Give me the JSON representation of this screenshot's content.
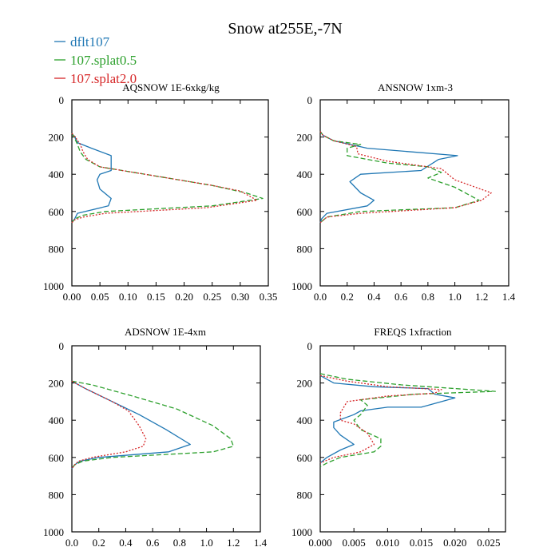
{
  "figure_title": "Snow at255E,-7N",
  "legend": [
    {
      "label": "dflt107",
      "color": "#1f77b4",
      "dash": "solid"
    },
    {
      "label": "107.splat0.5",
      "color": "#2ca02c",
      "dash": "dash"
    },
    {
      "label": "107.splat2.0",
      "color": "#d62728",
      "dash": "dot"
    }
  ],
  "chart_data": [
    {
      "type": "line",
      "title": "AQSNOW  1E-6xkg/kg",
      "xlim": [
        0,
        0.35
      ],
      "xticks": [
        0,
        0.05,
        0.1,
        0.15,
        0.2,
        0.25,
        0.3,
        0.35
      ],
      "xticklabels": [
        "0.00",
        "0.05",
        "0.10",
        "0.15",
        "0.20",
        "0.25",
        "0.30",
        "0.35"
      ],
      "ylim": [
        1000,
        0
      ],
      "yticks": [
        0,
        200,
        400,
        600,
        800,
        1000
      ],
      "yticklabels": [
        "0",
        "200",
        "400",
        "600",
        "800",
        "1000"
      ],
      "series": [
        {
          "name": "dflt107",
          "points": [
            [
              0,
              180
            ],
            [
              0.005,
              200
            ],
            [
              0.01,
              230
            ],
            [
              0.035,
              260
            ],
            [
              0.07,
              300
            ],
            [
              0.07,
              380
            ],
            [
              0.05,
              400
            ],
            [
              0.045,
              430
            ],
            [
              0.05,
              480
            ],
            [
              0.07,
              530
            ],
            [
              0.065,
              570
            ],
            [
              0.01,
              610
            ],
            [
              0.005,
              640
            ],
            [
              0,
              660
            ]
          ]
        },
        {
          "name": "107.splat0.5",
          "points": [
            [
              0,
              180
            ],
            [
              0.004,
              200
            ],
            [
              0.01,
              240
            ],
            [
              0.015,
              280
            ],
            [
              0.025,
              320
            ],
            [
              0.05,
              360
            ],
            [
              0.15,
              410
            ],
            [
              0.25,
              460
            ],
            [
              0.31,
              500
            ],
            [
              0.34,
              530
            ],
            [
              0.25,
              570
            ],
            [
              0.06,
              600
            ],
            [
              0.02,
              620
            ],
            [
              0.005,
              640
            ],
            [
              0,
              660
            ]
          ]
        },
        {
          "name": "107.splat2.0",
          "points": [
            [
              0,
              180
            ],
            [
              0.006,
              200
            ],
            [
              0.015,
              240
            ],
            [
              0.02,
              280
            ],
            [
              0.028,
              320
            ],
            [
              0.05,
              360
            ],
            [
              0.15,
              410
            ],
            [
              0.25,
              460
            ],
            [
              0.3,
              490
            ],
            [
              0.33,
              540
            ],
            [
              0.24,
              580
            ],
            [
              0.06,
              610
            ],
            [
              0.02,
              630
            ],
            [
              0.005,
              645
            ],
            [
              0,
              660
            ]
          ]
        }
      ]
    },
    {
      "type": "line",
      "title": "ANSNOW  1xm-3",
      "xlim": [
        0,
        1.4
      ],
      "xticks": [
        0,
        0.2,
        0.4,
        0.6,
        0.8,
        1.0,
        1.2,
        1.4
      ],
      "xticklabels": [
        "0.0",
        "0.2",
        "0.4",
        "0.6",
        "0.8",
        "1.0",
        "1.2",
        "1.4"
      ],
      "ylim": [
        1000,
        0
      ],
      "yticks": [
        0,
        200,
        400,
        600,
        800,
        1000
      ],
      "yticklabels": [
        "0",
        "200",
        "400",
        "600",
        "800",
        "1000"
      ],
      "series": [
        {
          "name": "dflt107",
          "points": [
            [
              0,
              170
            ],
            [
              0.02,
              190
            ],
            [
              0.1,
              220
            ],
            [
              0.35,
              260
            ],
            [
              1.02,
              300
            ],
            [
              0.88,
              320
            ],
            [
              0.75,
              380
            ],
            [
              0.3,
              400
            ],
            [
              0.22,
              440
            ],
            [
              0.3,
              500
            ],
            [
              0.4,
              540
            ],
            [
              0.35,
              570
            ],
            [
              0.05,
              610
            ],
            [
              0.01,
              640
            ],
            [
              0,
              660
            ]
          ]
        },
        {
          "name": "107.splat0.5",
          "points": [
            [
              0,
              170
            ],
            [
              0.02,
              190
            ],
            [
              0.1,
              220
            ],
            [
              0.3,
              240
            ],
            [
              0.2,
              260
            ],
            [
              0.2,
              300
            ],
            [
              0.5,
              340
            ],
            [
              0.8,
              360
            ],
            [
              0.9,
              390
            ],
            [
              0.8,
              420
            ],
            [
              1.0,
              470
            ],
            [
              1.18,
              540
            ],
            [
              1.0,
              580
            ],
            [
              0.3,
              600
            ],
            [
              0.05,
              630
            ],
            [
              0,
              660
            ]
          ]
        },
        {
          "name": "107.splat2.0",
          "points": [
            [
              0,
              170
            ],
            [
              0.02,
              190
            ],
            [
              0.1,
              220
            ],
            [
              0.27,
              250
            ],
            [
              0.28,
              290
            ],
            [
              0.5,
              330
            ],
            [
              0.9,
              370
            ],
            [
              0.95,
              400
            ],
            [
              1.0,
              430
            ],
            [
              1.27,
              500
            ],
            [
              1.2,
              540
            ],
            [
              1.0,
              580
            ],
            [
              0.3,
              610
            ],
            [
              0.05,
              630
            ],
            [
              0,
              660
            ]
          ]
        }
      ]
    },
    {
      "type": "line",
      "title": "ADSNOW  1E-4xm",
      "xlim": [
        0,
        1.4
      ],
      "xticks": [
        0,
        0.2,
        0.4,
        0.6,
        0.8,
        1.0,
        1.2,
        1.4
      ],
      "xticklabels": [
        "0.0",
        "0.2",
        "0.4",
        "0.6",
        "0.8",
        "1.0",
        "1.2",
        "1.4"
      ],
      "ylim": [
        1000,
        0
      ],
      "yticks": [
        0,
        200,
        400,
        600,
        800,
        1000
      ],
      "yticklabels": [
        "0",
        "200",
        "400",
        "600",
        "800",
        "1000"
      ],
      "series": [
        {
          "name": "dflt107",
          "points": [
            [
              0,
              190
            ],
            [
              0.1,
              230
            ],
            [
              0.3,
              300
            ],
            [
              0.5,
              370
            ],
            [
              0.7,
              450
            ],
            [
              0.88,
              530
            ],
            [
              0.72,
              570
            ],
            [
              0.2,
              600
            ],
            [
              0.06,
              620
            ],
            [
              0.02,
              640
            ],
            [
              0,
              660
            ]
          ]
        },
        {
          "name": "107.splat0.5",
          "points": [
            [
              0,
              190
            ],
            [
              0.15,
              210
            ],
            [
              0.45,
              270
            ],
            [
              0.78,
              340
            ],
            [
              1.05,
              430
            ],
            [
              1.18,
              500
            ],
            [
              1.2,
              540
            ],
            [
              1.05,
              570
            ],
            [
              0.3,
              600
            ],
            [
              0.08,
              620
            ],
            [
              0.02,
              640
            ],
            [
              0,
              660
            ]
          ]
        },
        {
          "name": "107.splat2.0",
          "points": [
            [
              0,
              190
            ],
            [
              0.1,
              230
            ],
            [
              0.3,
              300
            ],
            [
              0.42,
              350
            ],
            [
              0.5,
              430
            ],
            [
              0.55,
              500
            ],
            [
              0.53,
              540
            ],
            [
              0.4,
              570
            ],
            [
              0.15,
              600
            ],
            [
              0.05,
              620
            ],
            [
              0.02,
              640
            ],
            [
              0,
              660
            ]
          ]
        }
      ]
    },
    {
      "type": "line",
      "title": "FREQS  1xfraction",
      "xlim": [
        0,
        0.0275
      ],
      "xticks": [
        0,
        0.005,
        0.01,
        0.015,
        0.02,
        0.025
      ],
      "xticklabels": [
        "0.000",
        "0.005",
        "0.010",
        "0.015",
        "0.020",
        "0.025"
      ],
      "ylim": [
        1000,
        0
      ],
      "yticks": [
        0,
        200,
        400,
        600,
        800,
        1000
      ],
      "yticklabels": [
        "0",
        "200",
        "400",
        "600",
        "800",
        "1000"
      ],
      "series": [
        {
          "name": "dflt107",
          "points": [
            [
              0,
              160
            ],
            [
              0.002,
              200
            ],
            [
              0.008,
              220
            ],
            [
              0.016,
              230
            ],
            [
              0.017,
              260
            ],
            [
              0.02,
              280
            ],
            [
              0.015,
              330
            ],
            [
              0.01,
              330
            ],
            [
              0.006,
              350
            ],
            [
              0.005,
              370
            ],
            [
              0.002,
              410
            ],
            [
              0.002,
              440
            ],
            [
              0.003,
              480
            ],
            [
              0.005,
              530
            ],
            [
              0.003,
              560
            ],
            [
              0.001,
              600
            ],
            [
              0,
              630
            ]
          ]
        },
        {
          "name": "107.splat0.5",
          "points": [
            [
              0,
              150
            ],
            [
              0.004,
              180
            ],
            [
              0.012,
              210
            ],
            [
              0.026,
              245
            ],
            [
              0.014,
              260
            ],
            [
              0.006,
              290
            ],
            [
              0.007,
              320
            ],
            [
              0.006,
              370
            ],
            [
              0.005,
              400
            ],
            [
              0.006,
              450
            ],
            [
              0.009,
              500
            ],
            [
              0.009,
              540
            ],
            [
              0.008,
              570
            ],
            [
              0.003,
              600
            ],
            [
              0.001,
              630
            ],
            [
              0,
              650
            ]
          ]
        },
        {
          "name": "107.splat2.0",
          "points": [
            [
              0,
              160
            ],
            [
              0.004,
              190
            ],
            [
              0.01,
              220
            ],
            [
              0.018,
              235
            ],
            [
              0.017,
              255
            ],
            [
              0.01,
              270
            ],
            [
              0.004,
              300
            ],
            [
              0.003,
              360
            ],
            [
              0.003,
              400
            ],
            [
              0.005,
              420
            ],
            [
              0.007,
              470
            ],
            [
              0.008,
              530
            ],
            [
              0.006,
              570
            ],
            [
              0.002,
              600
            ],
            [
              0,
              630
            ]
          ]
        }
      ]
    }
  ]
}
